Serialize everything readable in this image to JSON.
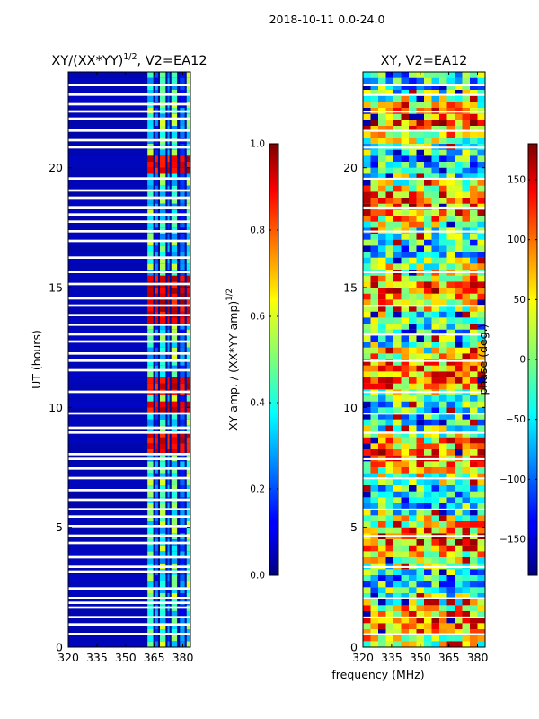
{
  "figure": {
    "suptitle": "2018-10-11 0.0-24.0",
    "shared_xlabel": "frequency (MHz)"
  },
  "chart_data": [
    {
      "type": "heatmap",
      "title": "XY/(XX*YY)^1/2, V2=EA12",
      "title_main": "XY/(XX*YY)",
      "title_exp": "1/2",
      "title_tail": ", V2=EA12",
      "xlabel": "frequency (MHz)",
      "ylabel": "UT (hours)",
      "xlim": [
        320,
        384
      ],
      "ylim": [
        0,
        24
      ],
      "xticks": [
        320,
        335,
        350,
        365,
        380
      ],
      "yticks": [
        0,
        5,
        10,
        15,
        20
      ],
      "band_edge_mhz": 361,
      "colorbar": {
        "label": "XY amp. / (XX*YY amp)^1/2",
        "label_main": "XY amp. / (XX*YY amp)",
        "label_exp": "1/2",
        "range": [
          0.0,
          1.0
        ],
        "ticks": [
          "0.0",
          "0.2",
          "0.4",
          "0.6",
          "0.8",
          "1.0"
        ],
        "tick_values": [
          0,
          0.2,
          0.4,
          0.6,
          0.8,
          1.0
        ]
      },
      "flagged_hours": [
        0.5,
        0.9,
        1.2,
        1.6,
        1.8,
        2.0,
        2.4,
        3.1,
        3.3,
        3.7,
        4.3,
        4.6,
        5.0,
        5.4,
        5.7,
        6.1,
        6.5,
        7.0,
        7.4,
        7.8,
        8.0,
        8.9,
        9.1,
        9.7,
        10.6,
        11.5,
        11.9,
        12.2,
        12.7,
        13.0,
        13.4,
        13.8,
        14.2,
        14.5,
        15.1,
        15.6,
        16.2,
        16.9,
        17.3,
        17.7,
        18.0,
        18.3,
        18.7,
        19.0,
        19.5,
        20.8,
        21.1,
        21.5,
        22.0,
        22.3,
        22.6,
        23.0,
        23.4
      ],
      "high_amplitude_hours": [
        [
          8.2,
          8.8
        ],
        [
          9.9,
          10.2
        ],
        [
          10.7,
          11.2
        ],
        [
          13.5,
          15.3
        ],
        [
          19.9,
          20.3
        ]
      ]
    },
    {
      "type": "heatmap",
      "title": "XY, V2=EA12",
      "xlabel": "frequency (MHz)",
      "ylabel": "",
      "xlim": [
        320,
        384
      ],
      "ylim": [
        0,
        24
      ],
      "xticks": [
        320,
        335,
        350,
        365,
        380
      ],
      "yticks": [
        0,
        5,
        10,
        15,
        20
      ],
      "colorbar": {
        "label": "phase (deg.)",
        "range": [
          -180,
          180
        ],
        "ticks": [
          "−150",
          "−100",
          "−50",
          "0",
          "50",
          "100",
          "150"
        ],
        "tick_values": [
          -150,
          -100,
          -50,
          0,
          50,
          100,
          150
        ]
      },
      "flagged_hours": [
        0.5,
        1.2,
        2.0,
        3.3,
        4.6,
        5.7,
        7.0,
        7.8,
        8.9,
        9.7,
        10.6,
        11.9,
        13.0,
        14.2,
        15.6,
        17.3,
        18.3,
        19.5,
        20.8,
        21.5,
        22.3,
        23.0,
        23.4
      ]
    }
  ]
}
